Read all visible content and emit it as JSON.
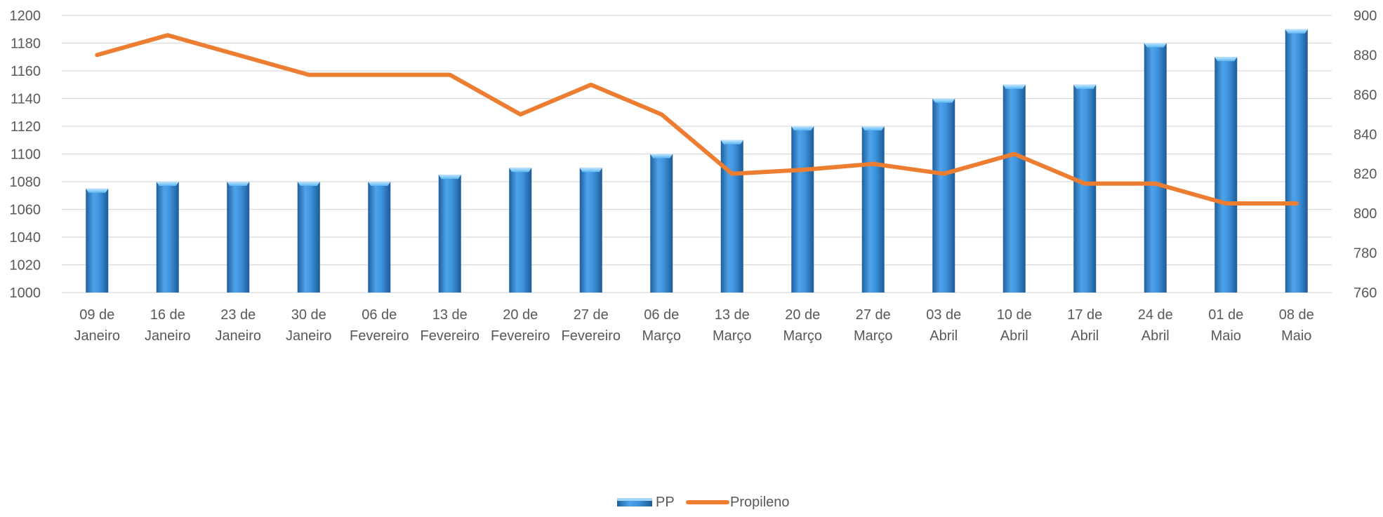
{
  "chart_data": {
    "type": "bar",
    "categories": [
      [
        "09 de",
        "Janeiro"
      ],
      [
        "16 de",
        "Janeiro"
      ],
      [
        "23 de",
        "Janeiro"
      ],
      [
        "30 de",
        "Janeiro"
      ],
      [
        "06 de",
        "Fevereiro"
      ],
      [
        "13 de",
        "Fevereiro"
      ],
      [
        "20 de",
        "Fevereiro"
      ],
      [
        "27 de",
        "Fevereiro"
      ],
      [
        "06 de",
        "Março"
      ],
      [
        "13 de",
        "Março"
      ],
      [
        "20 de",
        "Março"
      ],
      [
        "27 de",
        "Março"
      ],
      [
        "03 de",
        "Abril"
      ],
      [
        "10 de",
        "Abril"
      ],
      [
        "17 de",
        "Abril"
      ],
      [
        "24 de",
        "Abril"
      ],
      [
        "01 de",
        "Maio"
      ],
      [
        "08 de",
        "Maio"
      ]
    ],
    "series": [
      {
        "name": "PP",
        "type": "bar",
        "axis": "left",
        "color": "#3A8FD9",
        "values": [
          1075,
          1080,
          1080,
          1080,
          1080,
          1085,
          1090,
          1090,
          1100,
          1110,
          1120,
          1120,
          1140,
          1150,
          1150,
          1180,
          1170,
          1190
        ]
      },
      {
        "name": "Propileno",
        "type": "line",
        "axis": "right",
        "color": "#ED7D31",
        "values": [
          880,
          890,
          880,
          870,
          870,
          870,
          850,
          865,
          850,
          820,
          822,
          825,
          820,
          830,
          815,
          815,
          805,
          805
        ]
      }
    ],
    "y_left": {
      "min": 1000,
      "max": 1200,
      "step": 20
    },
    "y_right": {
      "min": 760,
      "max": 900,
      "step": 20
    },
    "grid": true,
    "legend_position": "bottom"
  }
}
